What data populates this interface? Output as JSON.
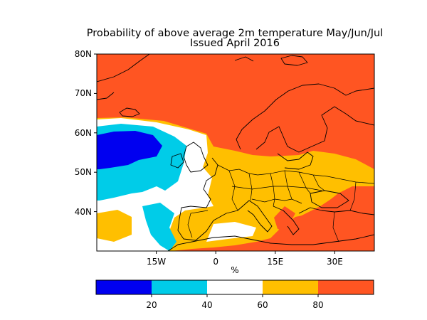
{
  "title": {
    "line1": "Probability of above average 2m temperature May/Jun/Jul",
    "line2": "Issued April 2016"
  },
  "axes": {
    "lat_labels": [
      "80N",
      "70N",
      "60N",
      "50N",
      "40N"
    ],
    "lon_labels": [
      "15W",
      "0",
      "15E",
      "30E"
    ],
    "unit_label": "%"
  },
  "colorbar": {
    "tick_labels": [
      "20",
      "40",
      "60",
      "80"
    ],
    "bins": [
      {
        "range": "0-20",
        "color": "#0000f0"
      },
      {
        "range": "20-40",
        "color": "#00cce8"
      },
      {
        "range": "40-60",
        "color": "#ffffff"
      },
      {
        "range": "60-80",
        "color": "#ffbf00"
      },
      {
        "range": "80-100",
        "color": "#ff5522"
      }
    ]
  },
  "map": {
    "extent": {
      "lon": [
        -30,
        40
      ],
      "lat": [
        30,
        80
      ]
    },
    "colors": {
      "above80": "#ff5522",
      "p60_80": "#ffbf00",
      "p40_60": "#ffffff",
      "p20_40": "#00cce8",
      "below20": "#0000f0"
    }
  }
}
